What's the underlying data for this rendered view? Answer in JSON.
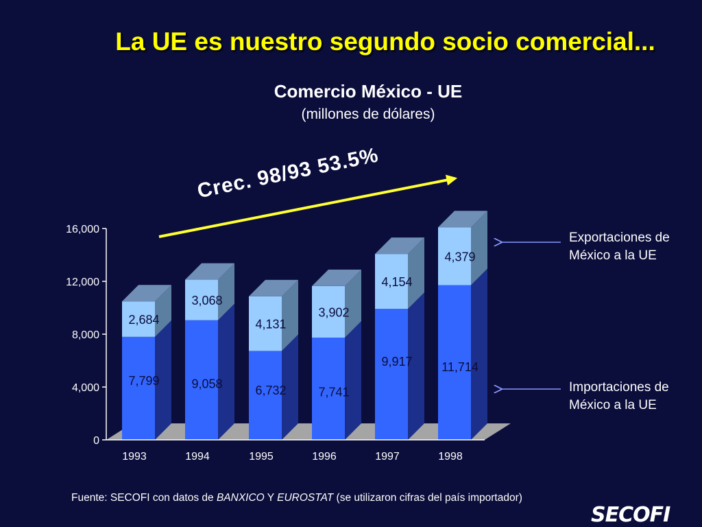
{
  "slide": {
    "title": "La UE es nuestro segundo socio comercial...",
    "growth_label": "Crec. 98/93 53.5%",
    "source_prefix": "Fuente: SECOFI con datos de ",
    "source_banxico": "BANXICO",
    "source_y": " Y ",
    "source_eurostat": "EUROSTAT",
    "source_suffix": " (se utilizaron cifras del país importador)",
    "logo_text": "SECOFI"
  },
  "colors": {
    "background": "#0b0d3b",
    "title": "#ffff00",
    "imports_front": "#3366ff",
    "imports_side": "#1c2f8a",
    "exports_front": "#99ccff",
    "exports_side": "#5b7fa0",
    "bar_top": "#6f8fb6",
    "floor": "#a5a5a5",
    "arrow": "#ffff33"
  },
  "chart_data": {
    "type": "bar",
    "stacked": true,
    "title": "Comercio México - UE",
    "subtitle": "(millones de dólares)",
    "categories": [
      "1993",
      "1994",
      "1995",
      "1996",
      "1997",
      "1998"
    ],
    "series": [
      {
        "name": "Importaciones de México a la UE",
        "values": [
          7799,
          9058,
          6732,
          7741,
          9917,
          11714
        ],
        "labels": [
          "7,799",
          "9,058",
          "6,732",
          "7,741",
          "9,917",
          "11,714"
        ]
      },
      {
        "name": "Exportaciones de México a la UE",
        "values": [
          2684,
          3068,
          4131,
          3902,
          4154,
          4379
        ],
        "labels": [
          "2,684",
          "3,068",
          "4,131",
          "3,902",
          "4,154",
          "4,379"
        ]
      }
    ],
    "ylim": [
      0,
      16000
    ],
    "yticks": [
      "0",
      "4,000",
      "8,000",
      "12,000",
      "16,000"
    ],
    "ytick_values": [
      0,
      4000,
      8000,
      12000,
      16000
    ],
    "legend": {
      "exports_line1": "Exportaciones de",
      "exports_line2": "México a la UE",
      "imports_line1": "Importaciones de",
      "imports_line2": "México a la UE"
    }
  }
}
